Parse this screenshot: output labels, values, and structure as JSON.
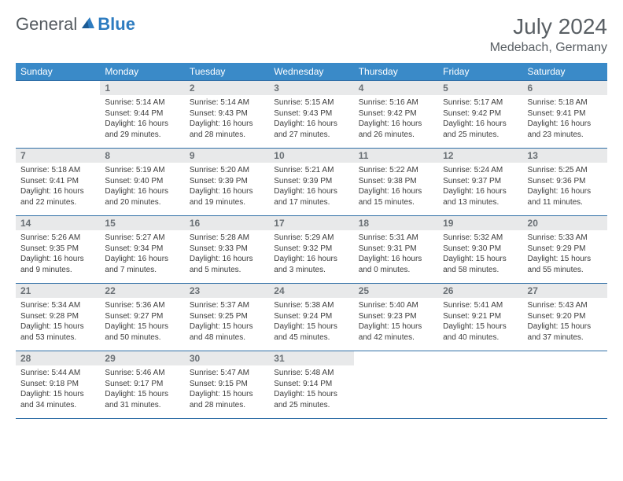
{
  "brand": {
    "part1": "General",
    "part2": "Blue"
  },
  "title": "July 2024",
  "location": "Medebach, Germany",
  "colors": {
    "header_bg": "#3a8ac8",
    "header_text": "#ffffff",
    "daynum_bg": "#e8e9ea",
    "border": "#2f6ea6",
    "body_text": "#3c3c3c",
    "title_text": "#595f64"
  },
  "day_headers": [
    "Sunday",
    "Monday",
    "Tuesday",
    "Wednesday",
    "Thursday",
    "Friday",
    "Saturday"
  ],
  "weeks": [
    {
      "nums": [
        "",
        "1",
        "2",
        "3",
        "4",
        "5",
        "6"
      ],
      "cells": [
        null,
        {
          "sunrise": "Sunrise: 5:14 AM",
          "sunset": "Sunset: 9:44 PM",
          "day1": "Daylight: 16 hours",
          "day2": "and 29 minutes."
        },
        {
          "sunrise": "Sunrise: 5:14 AM",
          "sunset": "Sunset: 9:43 PM",
          "day1": "Daylight: 16 hours",
          "day2": "and 28 minutes."
        },
        {
          "sunrise": "Sunrise: 5:15 AM",
          "sunset": "Sunset: 9:43 PM",
          "day1": "Daylight: 16 hours",
          "day2": "and 27 minutes."
        },
        {
          "sunrise": "Sunrise: 5:16 AM",
          "sunset": "Sunset: 9:42 PM",
          "day1": "Daylight: 16 hours",
          "day2": "and 26 minutes."
        },
        {
          "sunrise": "Sunrise: 5:17 AM",
          "sunset": "Sunset: 9:42 PM",
          "day1": "Daylight: 16 hours",
          "day2": "and 25 minutes."
        },
        {
          "sunrise": "Sunrise: 5:18 AM",
          "sunset": "Sunset: 9:41 PM",
          "day1": "Daylight: 16 hours",
          "day2": "and 23 minutes."
        }
      ]
    },
    {
      "nums": [
        "7",
        "8",
        "9",
        "10",
        "11",
        "12",
        "13"
      ],
      "cells": [
        {
          "sunrise": "Sunrise: 5:18 AM",
          "sunset": "Sunset: 9:41 PM",
          "day1": "Daylight: 16 hours",
          "day2": "and 22 minutes."
        },
        {
          "sunrise": "Sunrise: 5:19 AM",
          "sunset": "Sunset: 9:40 PM",
          "day1": "Daylight: 16 hours",
          "day2": "and 20 minutes."
        },
        {
          "sunrise": "Sunrise: 5:20 AM",
          "sunset": "Sunset: 9:39 PM",
          "day1": "Daylight: 16 hours",
          "day2": "and 19 minutes."
        },
        {
          "sunrise": "Sunrise: 5:21 AM",
          "sunset": "Sunset: 9:39 PM",
          "day1": "Daylight: 16 hours",
          "day2": "and 17 minutes."
        },
        {
          "sunrise": "Sunrise: 5:22 AM",
          "sunset": "Sunset: 9:38 PM",
          "day1": "Daylight: 16 hours",
          "day2": "and 15 minutes."
        },
        {
          "sunrise": "Sunrise: 5:24 AM",
          "sunset": "Sunset: 9:37 PM",
          "day1": "Daylight: 16 hours",
          "day2": "and 13 minutes."
        },
        {
          "sunrise": "Sunrise: 5:25 AM",
          "sunset": "Sunset: 9:36 PM",
          "day1": "Daylight: 16 hours",
          "day2": "and 11 minutes."
        }
      ]
    },
    {
      "nums": [
        "14",
        "15",
        "16",
        "17",
        "18",
        "19",
        "20"
      ],
      "cells": [
        {
          "sunrise": "Sunrise: 5:26 AM",
          "sunset": "Sunset: 9:35 PM",
          "day1": "Daylight: 16 hours",
          "day2": "and 9 minutes."
        },
        {
          "sunrise": "Sunrise: 5:27 AM",
          "sunset": "Sunset: 9:34 PM",
          "day1": "Daylight: 16 hours",
          "day2": "and 7 minutes."
        },
        {
          "sunrise": "Sunrise: 5:28 AM",
          "sunset": "Sunset: 9:33 PM",
          "day1": "Daylight: 16 hours",
          "day2": "and 5 minutes."
        },
        {
          "sunrise": "Sunrise: 5:29 AM",
          "sunset": "Sunset: 9:32 PM",
          "day1": "Daylight: 16 hours",
          "day2": "and 3 minutes."
        },
        {
          "sunrise": "Sunrise: 5:31 AM",
          "sunset": "Sunset: 9:31 PM",
          "day1": "Daylight: 16 hours",
          "day2": "and 0 minutes."
        },
        {
          "sunrise": "Sunrise: 5:32 AM",
          "sunset": "Sunset: 9:30 PM",
          "day1": "Daylight: 15 hours",
          "day2": "and 58 minutes."
        },
        {
          "sunrise": "Sunrise: 5:33 AM",
          "sunset": "Sunset: 9:29 PM",
          "day1": "Daylight: 15 hours",
          "day2": "and 55 minutes."
        }
      ]
    },
    {
      "nums": [
        "21",
        "22",
        "23",
        "24",
        "25",
        "26",
        "27"
      ],
      "cells": [
        {
          "sunrise": "Sunrise: 5:34 AM",
          "sunset": "Sunset: 9:28 PM",
          "day1": "Daylight: 15 hours",
          "day2": "and 53 minutes."
        },
        {
          "sunrise": "Sunrise: 5:36 AM",
          "sunset": "Sunset: 9:27 PM",
          "day1": "Daylight: 15 hours",
          "day2": "and 50 minutes."
        },
        {
          "sunrise": "Sunrise: 5:37 AM",
          "sunset": "Sunset: 9:25 PM",
          "day1": "Daylight: 15 hours",
          "day2": "and 48 minutes."
        },
        {
          "sunrise": "Sunrise: 5:38 AM",
          "sunset": "Sunset: 9:24 PM",
          "day1": "Daylight: 15 hours",
          "day2": "and 45 minutes."
        },
        {
          "sunrise": "Sunrise: 5:40 AM",
          "sunset": "Sunset: 9:23 PM",
          "day1": "Daylight: 15 hours",
          "day2": "and 42 minutes."
        },
        {
          "sunrise": "Sunrise: 5:41 AM",
          "sunset": "Sunset: 9:21 PM",
          "day1": "Daylight: 15 hours",
          "day2": "and 40 minutes."
        },
        {
          "sunrise": "Sunrise: 5:43 AM",
          "sunset": "Sunset: 9:20 PM",
          "day1": "Daylight: 15 hours",
          "day2": "and 37 minutes."
        }
      ]
    },
    {
      "nums": [
        "28",
        "29",
        "30",
        "31",
        "",
        "",
        ""
      ],
      "cells": [
        {
          "sunrise": "Sunrise: 5:44 AM",
          "sunset": "Sunset: 9:18 PM",
          "day1": "Daylight: 15 hours",
          "day2": "and 34 minutes."
        },
        {
          "sunrise": "Sunrise: 5:46 AM",
          "sunset": "Sunset: 9:17 PM",
          "day1": "Daylight: 15 hours",
          "day2": "and 31 minutes."
        },
        {
          "sunrise": "Sunrise: 5:47 AM",
          "sunset": "Sunset: 9:15 PM",
          "day1": "Daylight: 15 hours",
          "day2": "and 28 minutes."
        },
        {
          "sunrise": "Sunrise: 5:48 AM",
          "sunset": "Sunset: 9:14 PM",
          "day1": "Daylight: 15 hours",
          "day2": "and 25 minutes."
        },
        null,
        null,
        null
      ]
    }
  ]
}
